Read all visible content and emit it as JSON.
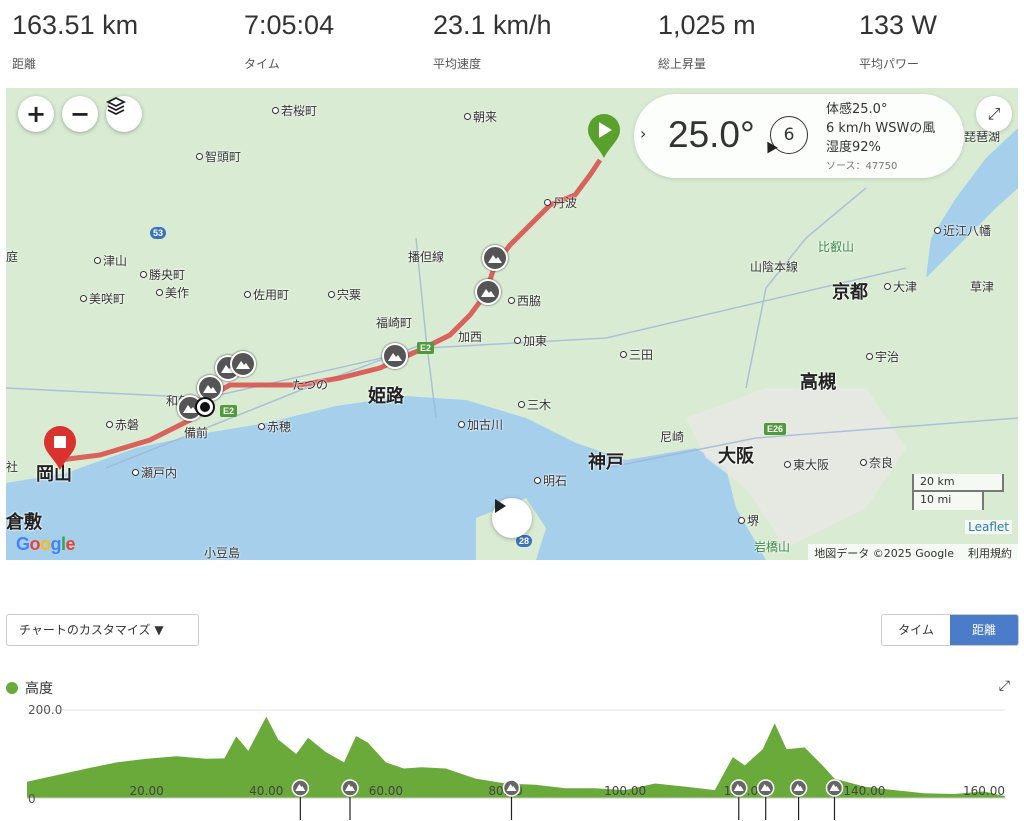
{
  "stats": [
    {
      "value": "163.51 km",
      "label": "距離"
    },
    {
      "value": "7:05:04",
      "label": "タイム"
    },
    {
      "value": "23.1 km/h",
      "label": "平均速度"
    },
    {
      "value": "1,025 m",
      "label": "総上昇量"
    },
    {
      "value": "133 W",
      "label": "平均パワー"
    }
  ],
  "map": {
    "controls": {
      "zoom_in": "+",
      "zoom_out": "−",
      "layers": "layers-icon"
    },
    "weather": {
      "temperature": "25.0°",
      "wind_speed": "6",
      "feels_like": "体感25.0°",
      "wind": "6 km/h WSWの風",
      "humidity": "湿度92%",
      "source": "ソース：47750"
    },
    "labels": [
      "若桜町",
      "朝来",
      "智頭町",
      "丹波",
      "津山",
      "勝央町",
      "美作",
      "佐用町",
      "宍粟",
      "美咲町",
      "福崎町",
      "西脇",
      "加西",
      "加東",
      "三田",
      "和気",
      "たつの",
      "姫路",
      "赤磐",
      "備前",
      "赤穂",
      "三木",
      "加古川",
      "岡山",
      "瀬戸内",
      "神戸",
      "尼崎",
      "明石",
      "大阪",
      "東大阪",
      "奈良",
      "高槻",
      "宇治",
      "京都",
      "大津",
      "比叡山",
      "近江八幡",
      "草津",
      "倉敷",
      "堺",
      "岩橋山",
      "小豆島",
      "播但線",
      "山陰本線",
      "琵琶湖",
      "庭",
      "社"
    ],
    "scale": {
      "metric": "20 km",
      "imperial": "10 mi"
    },
    "leaflet": "Leaflet",
    "attribution": "地図データ ©2025 Google",
    "terms": "利用規約",
    "google_logo": "Google",
    "road_labels": [
      "53",
      "E2",
      "E2",
      "E26",
      "28"
    ],
    "colors": {
      "route": "#d9534f",
      "start": "#5aa02c",
      "end": "#d9322f",
      "land": "#d9ecd3",
      "sea": "#a6cfec"
    }
  },
  "controls": {
    "customize": "チャートのカスタマイズ ▼",
    "toggle": [
      "タイム",
      "距離"
    ],
    "selected": "距離"
  },
  "chart_data": {
    "type": "area",
    "series": [
      {
        "name": "高度",
        "color": "#6aaa3a"
      }
    ],
    "x": [
      0,
      5,
      10,
      15,
      20,
      25,
      30,
      33,
      35,
      37,
      40,
      42,
      45,
      47,
      50,
      53,
      55,
      57,
      60,
      63,
      66,
      70,
      75,
      80,
      85,
      90,
      95,
      100,
      105,
      110,
      115,
      118,
      120,
      123,
      125,
      127,
      130,
      133,
      135,
      140,
      145,
      150,
      155,
      160,
      163.5
    ],
    "y": [
      37,
      52,
      67,
      81,
      89,
      95,
      89,
      90,
      140,
      107,
      185,
      133,
      100,
      137,
      104,
      81,
      141,
      126,
      81,
      67,
      70,
      67,
      44,
      33,
      30,
      22,
      22,
      18,
      33,
      26,
      18,
      93,
      74,
      111,
      170,
      111,
      115,
      74,
      44,
      26,
      18,
      11,
      9,
      15,
      4
    ],
    "xlim": [
      0,
      163.51
    ],
    "ylim": [
      0,
      200
    ],
    "y_ticks": [
      "0",
      "200.0"
    ],
    "x_ticks": [
      20,
      40,
      60,
      80,
      100,
      120,
      140,
      160
    ],
    "x_tick_labels": [
      "20.00",
      "40.00",
      "60.00",
      "80.00",
      "100.00",
      "120.00",
      "140.00",
      "160.00"
    ],
    "peak_markers_km": [
      45.7,
      54,
      81,
      119,
      123.5,
      129,
      135
    ],
    "grid": true,
    "legend": "top-left"
  }
}
